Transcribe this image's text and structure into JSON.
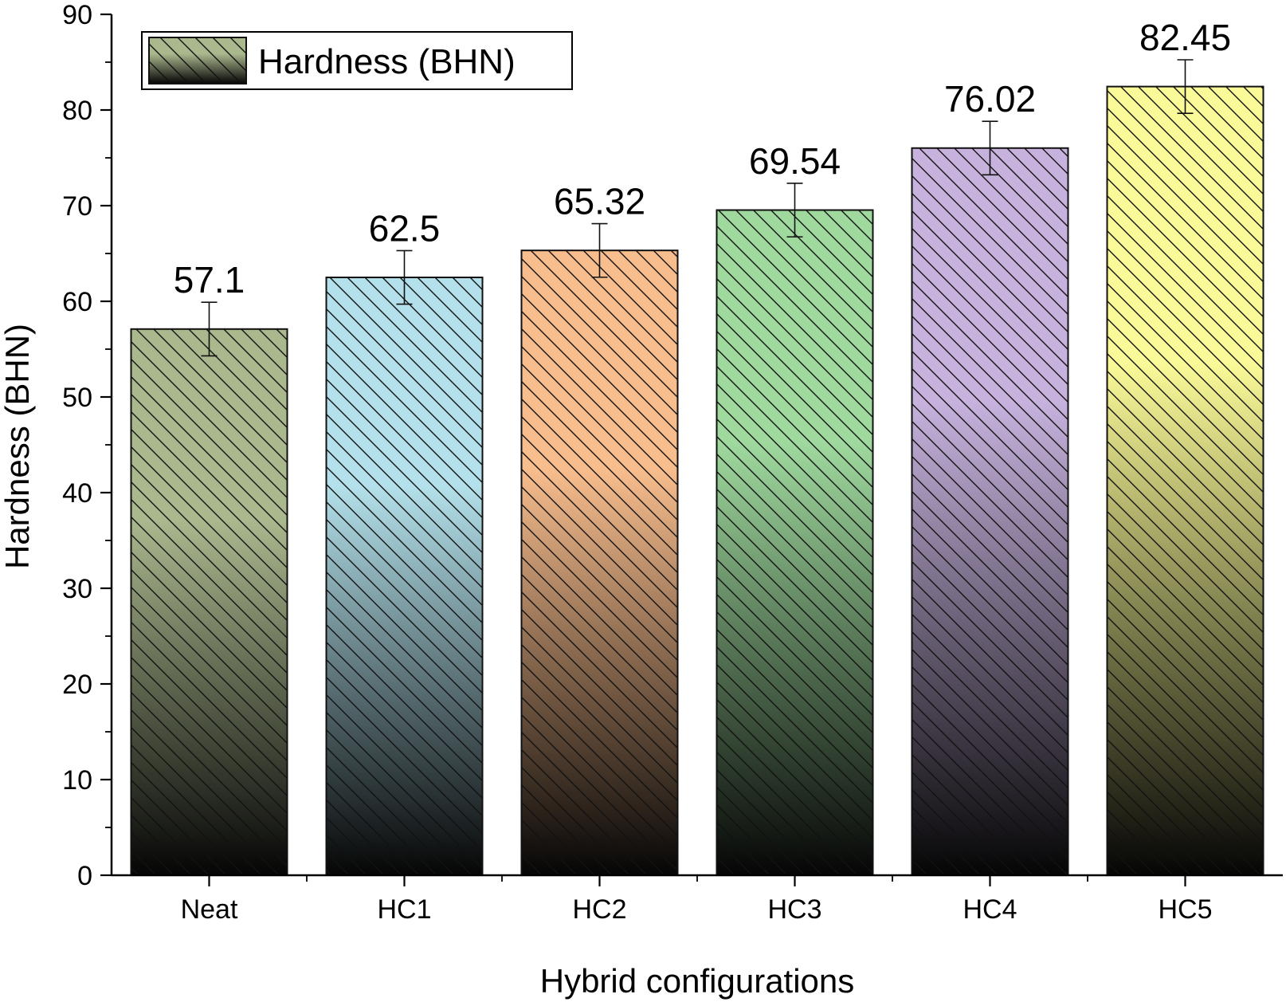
{
  "chart_data": {
    "type": "bar",
    "title": "",
    "xlabel": "Hybrid configurations",
    "ylabel": "Hardness (BHN)",
    "ylim": [
      0,
      90
    ],
    "yticks": [
      0,
      10,
      20,
      30,
      40,
      50,
      60,
      70,
      80,
      90
    ],
    "grid": false,
    "legend": {
      "placement": "top-left",
      "entries": [
        "Hardness (BHN)"
      ]
    },
    "categories": [
      "Neat",
      "HC1",
      "HC2",
      "HC3",
      "HC4",
      "HC5"
    ],
    "series": [
      {
        "name": "Hardness (BHN)",
        "values": [
          57.1,
          62.5,
          65.32,
          69.54,
          76.02,
          82.45
        ],
        "error": [
          2.8,
          2.8,
          2.8,
          2.8,
          2.8,
          2.8
        ],
        "labels": [
          "57.1",
          "62.5",
          "65.32",
          "69.54",
          "76.02",
          "82.45"
        ]
      }
    ],
    "bar_colors": [
      "#aab88e",
      "#b3e0ea",
      "#f8bd8d",
      "#9fd99e",
      "#c6b2dd",
      "#fafa98"
    ],
    "legend_color": "#aab88e",
    "fill_pattern": "diagonal-hatch-with-dark-gradient"
  }
}
